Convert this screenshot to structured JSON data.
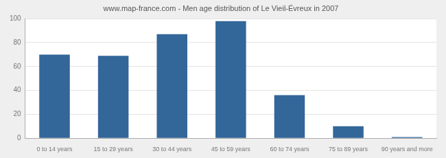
{
  "chart_data": {
    "type": "bar",
    "title": "www.map-france.com - Men age distribution of Le Vieil-Évreux in 2007",
    "categories": [
      "0 to 14 years",
      "15 to 29 years",
      "30 to 44 years",
      "45 to 59 years",
      "60 to 74 years",
      "75 to 89 years",
      "90 years and more"
    ],
    "values": [
      70,
      69,
      87,
      98,
      36,
      10,
      1
    ],
    "color": "#336699",
    "ylim": [
      0,
      100
    ],
    "yticks": [
      0,
      20,
      40,
      60,
      80,
      100
    ],
    "grid": true
  }
}
